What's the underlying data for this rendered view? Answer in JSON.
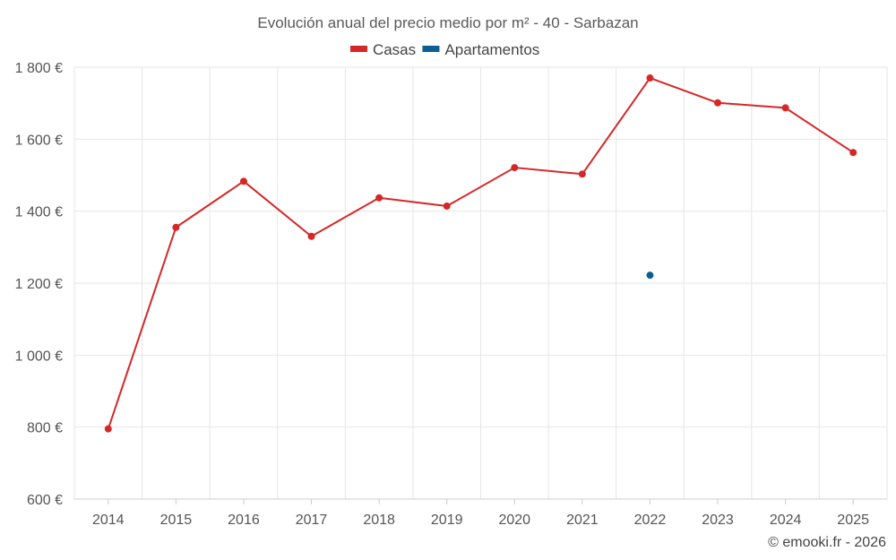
{
  "chart_data": {
    "type": "line",
    "title": "Evolución anual del precio medio por m² - 40 - Sarbazan",
    "categories": [
      "2014",
      "2015",
      "2016",
      "2017",
      "2018",
      "2019",
      "2020",
      "2021",
      "2022",
      "2023",
      "2024",
      "2025"
    ],
    "series": [
      {
        "name": "Casas",
        "color": "#d62728",
        "values": [
          795,
          1355,
          1483,
          1330,
          1437,
          1414,
          1521,
          1503,
          1770,
          1701,
          1687,
          1563
        ]
      },
      {
        "name": "Apartamentos",
        "color": "#0b5f95",
        "values": [
          null,
          null,
          null,
          null,
          null,
          null,
          null,
          null,
          1222,
          null,
          null,
          null
        ]
      }
    ],
    "ylim": [
      600,
      1800
    ],
    "yticks": [
      600,
      800,
      1000,
      1200,
      1400,
      1600,
      1800
    ],
    "ytick_labels": [
      "600 €",
      "800 €",
      "1 000 €",
      "1 200 €",
      "1 400 €",
      "1 600 €",
      "1 800 €"
    ],
    "legend_position": "top-center",
    "grid": true
  },
  "credit": "© emooki.fr - 2026"
}
